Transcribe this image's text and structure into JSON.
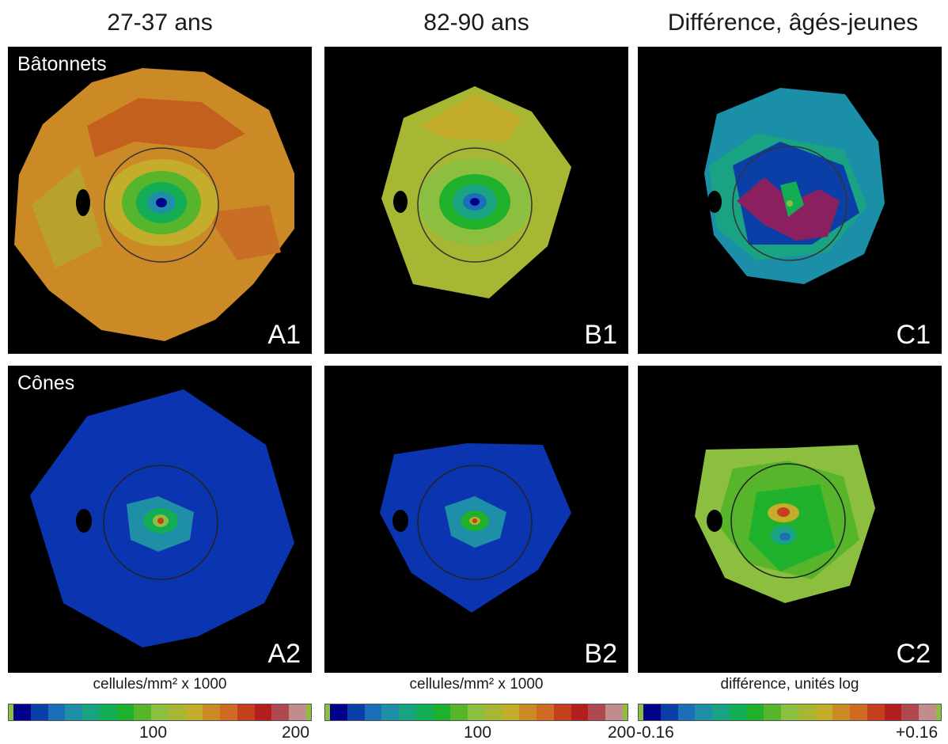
{
  "columns": [
    {
      "title": "27-37 ans"
    },
    {
      "title": "82-90 ans"
    },
    {
      "title": "Différence, âgés-jeunes"
    }
  ],
  "rows": [
    {
      "label": "Bâtonnets"
    },
    {
      "label": "Cônes"
    }
  ],
  "panels": {
    "a1": "A1",
    "b1": "B1",
    "c1": "C1",
    "a2": "A2",
    "b2": "B2",
    "c2": "C2"
  },
  "colorbars": [
    {
      "label": "cellules/mm² x 1000",
      "tick_mid": "100",
      "tick_max": "200"
    },
    {
      "label": "cellules/mm² x 1000",
      "tick_mid": "100",
      "tick_max": "200"
    },
    {
      "label": "différence, unités log",
      "tick_min": "-0.16",
      "tick_max": "+0.16"
    }
  ],
  "colormap": [
    "#00008b",
    "#0a3fa8",
    "#1b6fb8",
    "#1f8fa8",
    "#1aa382",
    "#12ad55",
    "#1fb02c",
    "#56b52a",
    "#8cbf3f",
    "#a7b733",
    "#c3ad2b",
    "#cc8a27",
    "#cf6a22",
    "#c4401d",
    "#b21d1d",
    "#b0494f",
    "#c08c8c"
  ],
  "colors": {
    "background": "#000000",
    "foreground": "#ffffff"
  }
}
